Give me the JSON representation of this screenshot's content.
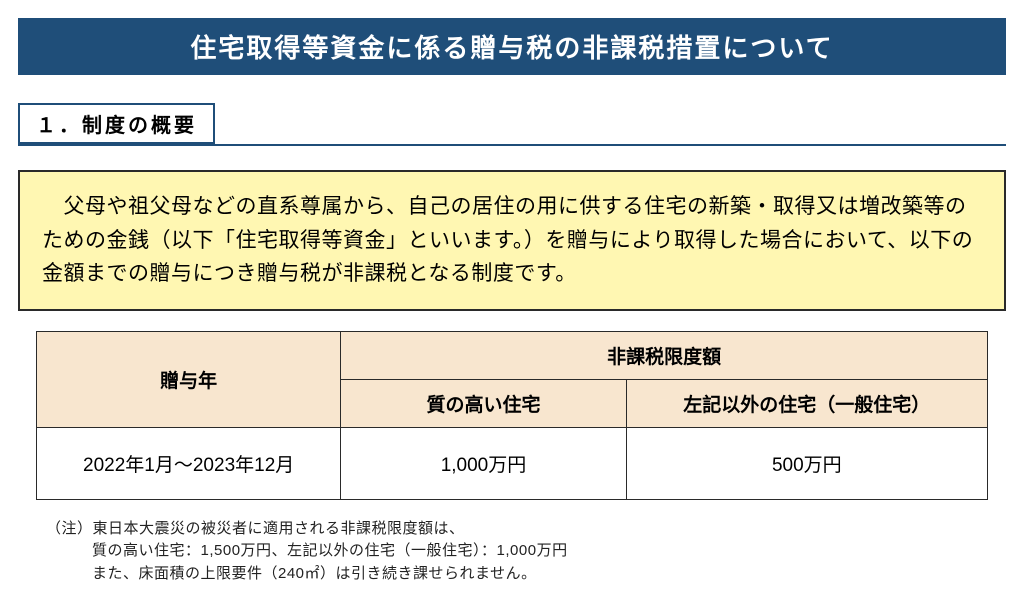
{
  "title": {
    "text": "住宅取得等資金に係る贈与税の非課税措置について",
    "bg_color": "#1f4e79",
    "text_color": "#ffffff",
    "fontsize": 26
  },
  "section": {
    "label": "１．制度の概要",
    "border_color": "#1f4e79",
    "underline_color": "#1f4e79"
  },
  "description": {
    "text": "　父母や祖父母などの直系尊属から、自己の居住の用に供する住宅の新築・取得又は増改築等のための金銭（以下「住宅取得等資金」といいます。）を贈与により取得した場合において、以下の金額までの贈与につき贈与税が非課税となる制度です。",
    "bg_color": "#fff7b2",
    "border_color": "#2a2a2a",
    "fontsize": 21
  },
  "table": {
    "border_color": "#2a2a2a",
    "header_bg": "#f8e6cf",
    "col_year": "贈与年",
    "col_limit": "非課税限度額",
    "col_high": "質の高い住宅",
    "col_other": "左記以外の住宅（一般住宅）",
    "row_year": "2022年1月～2023年12月",
    "row_high": "1,000万円",
    "row_other": "500万円",
    "header_fontsize": 19,
    "cell_fontsize": 19,
    "col_year_width": "32%",
    "col_high_width": "30%",
    "col_other_width": "38%"
  },
  "notes": {
    "line1": "（注）東日本大震災の被災者に適用される非課税限度額は、",
    "line2": "質の高い住宅：1,500万円、左記以外の住宅（一般住宅）：1,000万円",
    "line3": "また、床面積の上限要件（240㎡）は引き続き課せられません。",
    "fontsize": 15,
    "text_color": "#222222"
  }
}
